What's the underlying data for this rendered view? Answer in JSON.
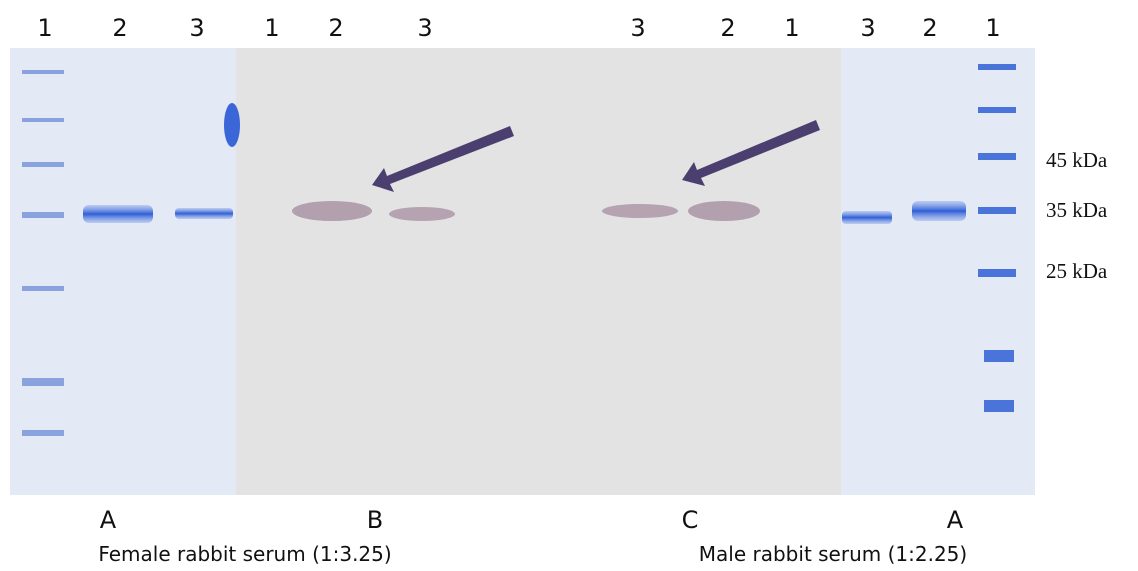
{
  "lane_labels": [
    "1",
    "2",
    "3",
    "1",
    "2",
    "3",
    "3",
    "2",
    "1",
    "3",
    "2",
    "1"
  ],
  "markers": [
    "45 kDa",
    "35 kDa",
    "25 kDa"
  ],
  "panels": [
    "A",
    "B",
    "C",
    "A"
  ],
  "captions": [
    "Female rabbit serum (1:3.25)",
    "Male rabbit serum (1:2.25)"
  ]
}
